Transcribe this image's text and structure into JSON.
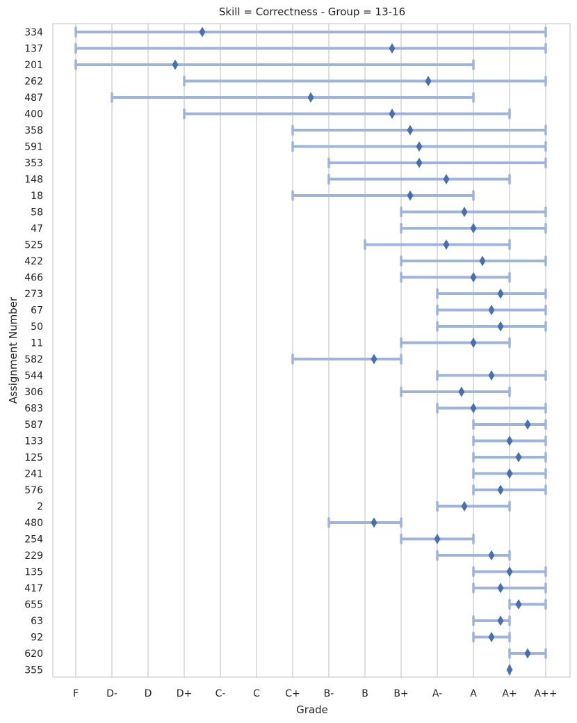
{
  "chart_data": {
    "type": "range-dot",
    "title": "Skill = Correctness - Group = 13-16",
    "xlabel": "Grade",
    "ylabel": "Assignment Number",
    "grades": [
      "F",
      "D-",
      "D",
      "D+",
      "C-",
      "C",
      "C+",
      "B-",
      "B",
      "B+",
      "A-",
      "A",
      "A+",
      "A++"
    ],
    "grid": "vertical",
    "colors": {
      "range": "#9fb4d8",
      "marker": "#4a6fae",
      "grid": "#cccccc",
      "frame": "#cccccc"
    },
    "rows": [
      {
        "label": "334",
        "min": 0,
        "max": 13,
        "mean": 3.5
      },
      {
        "label": "137",
        "min": 0,
        "max": 13,
        "mean": 8.75
      },
      {
        "label": "201",
        "min": 0,
        "max": 11,
        "mean": 2.75
      },
      {
        "label": "262",
        "min": 3,
        "max": 13,
        "mean": 9.75
      },
      {
        "label": "487",
        "min": 1,
        "max": 11,
        "mean": 6.5
      },
      {
        "label": "400",
        "min": 3,
        "max": 12,
        "mean": 8.75
      },
      {
        "label": "358",
        "min": 6,
        "max": 13,
        "mean": 9.25
      },
      {
        "label": "591",
        "min": 6,
        "max": 13,
        "mean": 9.5
      },
      {
        "label": "353",
        "min": 7,
        "max": 13,
        "mean": 9.5
      },
      {
        "label": "148",
        "min": 7,
        "max": 12,
        "mean": 10.25
      },
      {
        "label": "18",
        "min": 6,
        "max": 11,
        "mean": 9.25
      },
      {
        "label": "58",
        "min": 9,
        "max": 13,
        "mean": 10.75
      },
      {
        "label": "47",
        "min": 9,
        "max": 13,
        "mean": 11
      },
      {
        "label": "525",
        "min": 8,
        "max": 12,
        "mean": 10.25
      },
      {
        "label": "422",
        "min": 9,
        "max": 13,
        "mean": 11.25
      },
      {
        "label": "466",
        "min": 9,
        "max": 12,
        "mean": 11
      },
      {
        "label": "273",
        "min": 10,
        "max": 13,
        "mean": 11.75
      },
      {
        "label": "67",
        "min": 10,
        "max": 13,
        "mean": 11.5
      },
      {
        "label": "50",
        "min": 10,
        "max": 13,
        "mean": 11.75
      },
      {
        "label": "11",
        "min": 9,
        "max": 12,
        "mean": 11
      },
      {
        "label": "582",
        "min": 6,
        "max": 9,
        "mean": 8.25
      },
      {
        "label": "544",
        "min": 10,
        "max": 13,
        "mean": 11.5
      },
      {
        "label": "306",
        "min": 9,
        "max": 12,
        "mean": 10.67
      },
      {
        "label": "683",
        "min": 10,
        "max": 13,
        "mean": 11
      },
      {
        "label": "587",
        "min": 11,
        "max": 13,
        "mean": 12.5
      },
      {
        "label": "133",
        "min": 11,
        "max": 13,
        "mean": 12
      },
      {
        "label": "125",
        "min": 11,
        "max": 13,
        "mean": 12.25
      },
      {
        "label": "241",
        "min": 11,
        "max": 13,
        "mean": 12
      },
      {
        "label": "576",
        "min": 11,
        "max": 13,
        "mean": 11.75
      },
      {
        "label": "2",
        "min": 10,
        "max": 12,
        "mean": 10.75
      },
      {
        "label": "480",
        "min": 7,
        "max": 9,
        "mean": 8.25
      },
      {
        "label": "254",
        "min": 9,
        "max": 11,
        "mean": 10
      },
      {
        "label": "229",
        "min": 10,
        "max": 12,
        "mean": 11.5
      },
      {
        "label": "135",
        "min": 11,
        "max": 13,
        "mean": 12
      },
      {
        "label": "417",
        "min": 11,
        "max": 13,
        "mean": 11.75
      },
      {
        "label": "655",
        "min": 12,
        "max": 13,
        "mean": 12.25
      },
      {
        "label": "63",
        "min": 11,
        "max": 12,
        "mean": 11.75
      },
      {
        "label": "92",
        "min": 11,
        "max": 12,
        "mean": 11.5
      },
      {
        "label": "620",
        "min": 12,
        "max": 13,
        "mean": 12.5
      },
      {
        "label": "355",
        "min": 12,
        "max": 12,
        "mean": 12
      }
    ]
  }
}
